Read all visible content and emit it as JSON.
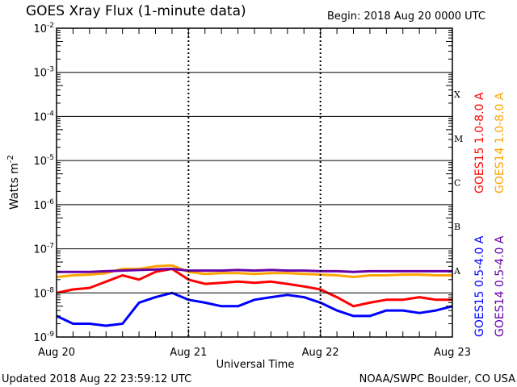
{
  "chart_data": {
    "type": "line",
    "title": "GOES Xray Flux (1-minute data)",
    "begin_label": "Begin:  2018 Aug 20 0000 UTC",
    "xlabel": "Universal Time",
    "ylabel": "Watts m",
    "ylabel_exp": "-2",
    "yscale": "log",
    "ylim": [
      1e-09,
      0.01
    ],
    "y_ticks": [
      {
        "base": "10",
        "exp": "-2",
        "value": 0.01
      },
      {
        "base": "10",
        "exp": "-3",
        "value": 0.001
      },
      {
        "base": "10",
        "exp": "-4",
        "value": 0.0001
      },
      {
        "base": "10",
        "exp": "-5",
        "value": 1e-05
      },
      {
        "base": "10",
        "exp": "-6",
        "value": 1e-06
      },
      {
        "base": "10",
        "exp": "-7",
        "value": 1e-07
      },
      {
        "base": "10",
        "exp": "-8",
        "value": 1e-08
      },
      {
        "base": "10",
        "exp": "-9",
        "value": 1e-09
      }
    ],
    "x_ticks": [
      "Aug 20",
      "Aug 21",
      "Aug 22",
      "Aug 23"
    ],
    "x_hours": [
      0,
      3,
      6,
      9,
      12,
      15,
      18,
      21,
      24,
      27,
      30,
      33,
      36,
      39,
      42,
      45,
      48,
      51,
      54,
      57,
      60,
      63,
      66,
      69,
      72
    ],
    "flare_classes": [
      {
        "label": "A",
        "value": 1e-08
      },
      {
        "label": "B",
        "value": 1e-07
      },
      {
        "label": "C",
        "value": 1e-06
      },
      {
        "label": "M",
        "value": 1e-05
      },
      {
        "label": "X",
        "value": 0.0001
      }
    ],
    "grid": "decade lines",
    "legend_placement": "right, vertical",
    "series": [
      {
        "name": "GOES15 1.0-8.0 A",
        "color": "#ff0000",
        "values": [
          1e-08,
          1.2e-08,
          1.3e-08,
          1.8e-08,
          2.5e-08,
          2e-08,
          3e-08,
          3.5e-08,
          2e-08,
          1.6e-08,
          1.7e-08,
          1.8e-08,
          1.7e-08,
          1.8e-08,
          1.6e-08,
          1.4e-08,
          1.2e-08,
          8e-09,
          5e-09,
          6e-09,
          7e-09,
          7e-09,
          8e-09,
          7e-09,
          7e-09
        ]
      },
      {
        "name": "GOES14 1.0-8.0 A",
        "color": "#ffa500",
        "values": [
          2.3e-08,
          2.5e-08,
          2.6e-08,
          2.8e-08,
          3.5e-08,
          3.5e-08,
          4e-08,
          4.2e-08,
          3e-08,
          2.7e-08,
          2.8e-08,
          2.8e-08,
          2.7e-08,
          2.8e-08,
          2.8e-08,
          2.7e-08,
          2.6e-08,
          2.5e-08,
          2.3e-08,
          2.5e-08,
          2.5e-08,
          2.6e-08,
          2.6e-08,
          2.5e-08,
          2.5e-08
        ]
      },
      {
        "name": "GOES15 0.5-4.0 A",
        "color": "#0000ff",
        "values": [
          3e-09,
          2e-09,
          2e-09,
          1.8e-09,
          2e-09,
          6e-09,
          8e-09,
          1e-08,
          7e-09,
          6e-09,
          5e-09,
          5e-09,
          7e-09,
          8e-09,
          9e-09,
          8e-09,
          6e-09,
          4e-09,
          3e-09,
          3e-09,
          4e-09,
          4e-09,
          3.5e-09,
          4e-09,
          5e-09
        ]
      },
      {
        "name": "GOES14 0.5-4.0 A",
        "color": "#6600aa",
        "values": [
          3e-08,
          3e-08,
          3e-08,
          3.1e-08,
          3.2e-08,
          3.3e-08,
          3.4e-08,
          3.5e-08,
          3.2e-08,
          3.2e-08,
          3.2e-08,
          3.3e-08,
          3.2e-08,
          3.3e-08,
          3.2e-08,
          3.2e-08,
          3.1e-08,
          3.1e-08,
          3e-08,
          3.1e-08,
          3.1e-08,
          3.1e-08,
          3.1e-08,
          3.1e-08,
          3.1e-08
        ]
      }
    ]
  },
  "footer": {
    "updated": "Updated 2018 Aug 22 23:59:12 UTC",
    "credit": "NOAA/SWPC Boulder, CO USA"
  }
}
